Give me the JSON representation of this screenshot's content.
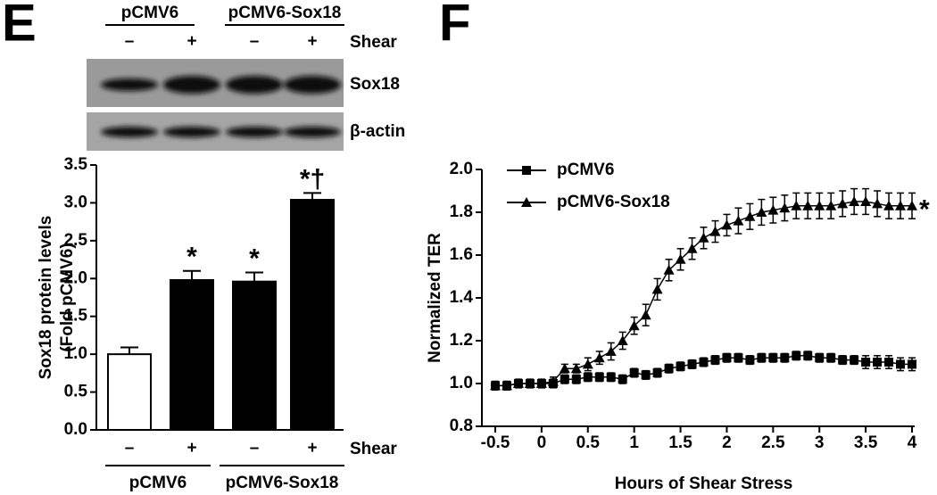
{
  "panel_labels": [
    "E",
    "F"
  ],
  "blot": {
    "groups": [
      "pCMV6",
      "pCMV6-Sox18"
    ],
    "lanes": [
      "–",
      "+",
      "–",
      "+"
    ],
    "condition_label": "Shear",
    "bands": [
      "Sox18",
      "β-actin"
    ]
  },
  "chart_data": [
    {
      "type": "bar",
      "ylabel": [
        "Sox18 protein levels",
        "(Fold pCMV6)"
      ],
      "categories": [
        "–",
        "+",
        "–",
        "+"
      ],
      "condition_label": "Shear",
      "groups": [
        "pCMV6",
        "pCMV6-Sox18"
      ],
      "values": [
        1.0,
        1.98,
        1.96,
        3.04
      ],
      "errors": [
        0.09,
        0.12,
        0.12,
        0.09
      ],
      "colors": [
        "#ffffff",
        "#000000",
        "#000000",
        "#000000"
      ],
      "labels_above": [
        null,
        "*",
        "*",
        "*†"
      ],
      "ylim": [
        0,
        3.5
      ],
      "yticks": [
        {
          "value": 0,
          "label": "0.0"
        },
        0.5,
        {
          "value": 1,
          "label": "1.0"
        },
        1.5,
        {
          "value": 2,
          "label": "2.0"
        },
        2.5,
        {
          "value": 3,
          "label": "3.0"
        },
        3.5
      ]
    },
    {
      "type": "line",
      "xlabel": "Hours of Shear Stress",
      "ylabel": "Normalized TER",
      "x": [
        -0.5,
        -0.375,
        -0.25,
        -0.125,
        0,
        0.125,
        0.25,
        0.375,
        0.5,
        0.625,
        0.75,
        0.875,
        1,
        1.125,
        1.25,
        1.375,
        1.5,
        1.625,
        1.75,
        1.875,
        2,
        2.125,
        2.25,
        2.375,
        2.5,
        2.625,
        2.75,
        2.875,
        3,
        3.125,
        3.25,
        3.375,
        3.5,
        3.625,
        3.75,
        3.875,
        4
      ],
      "series": [
        {
          "name": "pCMV6",
          "color": "#000000",
          "marker": "square",
          "values": [
            0.99,
            0.99,
            1.0,
            1.0,
            1.0,
            1.0,
            1.02,
            1.02,
            1.03,
            1.03,
            1.03,
            1.02,
            1.05,
            1.04,
            1.05,
            1.07,
            1.08,
            1.09,
            1.1,
            1.11,
            1.12,
            1.12,
            1.11,
            1.12,
            1.12,
            1.12,
            1.13,
            1.13,
            1.12,
            1.12,
            1.11,
            1.11,
            1.1,
            1.1,
            1.1,
            1.09,
            1.09
          ],
          "errors": [
            0.02,
            0.02,
            0.02,
            0.02,
            0.02,
            0.02,
            0.02,
            0.02,
            0.02,
            0.02,
            0.02,
            0.02,
            0.02,
            0.02,
            0.02,
            0.02,
            0.02,
            0.02,
            0.02,
            0.02,
            0.02,
            0.02,
            0.02,
            0.02,
            0.02,
            0.02,
            0.02,
            0.02,
            0.02,
            0.02,
            0.02,
            0.02,
            0.03,
            0.03,
            0.03,
            0.03,
            0.03
          ]
        },
        {
          "name": "pCMV6-Sox18",
          "color": "#000000",
          "marker": "triangle",
          "values": [
            0.99,
            0.99,
            1.0,
            1.0,
            1.0,
            1.01,
            1.07,
            1.07,
            1.09,
            1.12,
            1.15,
            1.2,
            1.27,
            1.32,
            1.44,
            1.53,
            1.58,
            1.63,
            1.68,
            1.71,
            1.74,
            1.76,
            1.78,
            1.8,
            1.81,
            1.82,
            1.83,
            1.83,
            1.83,
            1.83,
            1.84,
            1.85,
            1.85,
            1.84,
            1.83,
            1.83,
            1.83
          ],
          "errors": [
            0.02,
            0.02,
            0.02,
            0.02,
            0.02,
            0.02,
            0.02,
            0.02,
            0.03,
            0.03,
            0.04,
            0.04,
            0.04,
            0.05,
            0.05,
            0.05,
            0.05,
            0.05,
            0.05,
            0.05,
            0.05,
            0.06,
            0.06,
            0.06,
            0.06,
            0.06,
            0.06,
            0.06,
            0.06,
            0.06,
            0.06,
            0.06,
            0.06,
            0.06,
            0.06,
            0.06,
            0.06
          ]
        }
      ],
      "annotation": "*",
      "legend": "upper left",
      "xlim": [
        -0.5,
        4
      ],
      "xticks": [
        -0.5,
        0,
        0.5,
        1,
        1.5,
        2,
        2.5,
        3,
        3.5,
        4
      ],
      "ylim": [
        0.8,
        2.0
      ],
      "yticks": [
        0.8,
        {
          "value": 1,
          "label": "1.0"
        },
        1.2,
        1.4,
        1.6,
        1.8,
        {
          "value": 2,
          "label": "2.0"
        }
      ]
    }
  ]
}
